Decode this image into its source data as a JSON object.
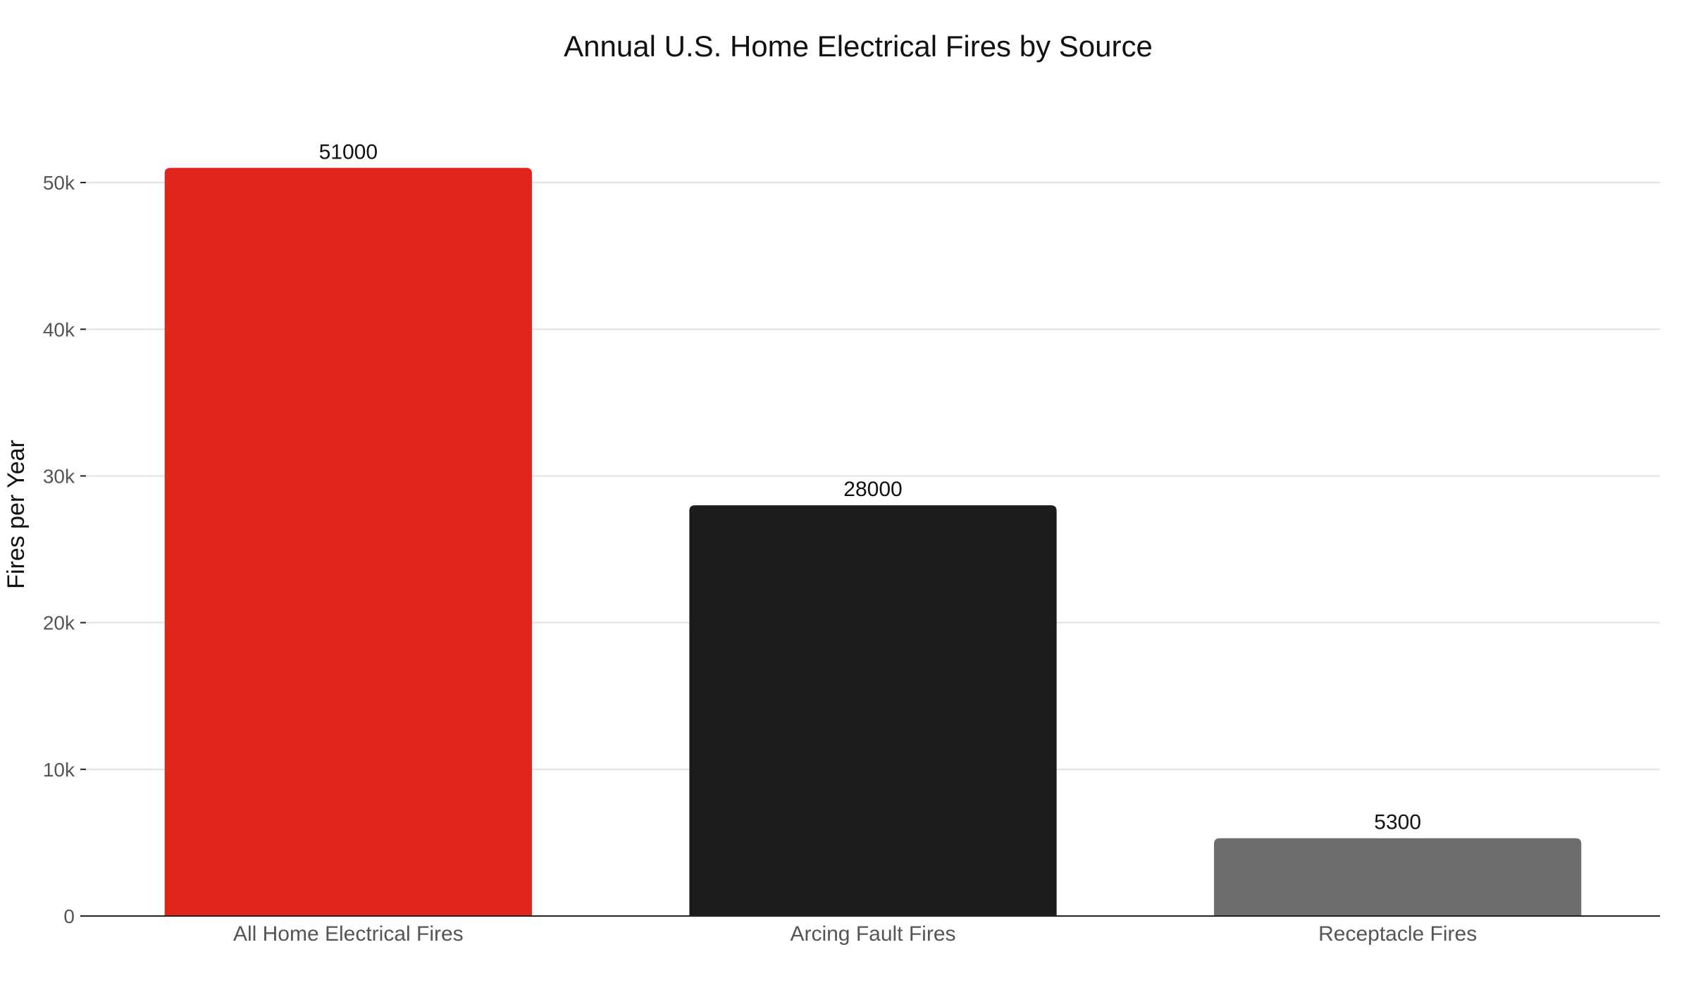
{
  "chart_data": {
    "type": "bar",
    "title": "Annual U.S. Home Electrical Fires by Source",
    "xlabel": "",
    "ylabel": "Fires per Year",
    "categories": [
      "All Home Electrical Fires",
      "Arcing Fault Fires",
      "Receptacle Fires"
    ],
    "values": [
      51000,
      28000,
      5300
    ],
    "data_labels": [
      "51000",
      "28000",
      "5300"
    ],
    "colors": [
      "#e0251b",
      "#1c1c1c",
      "#6d6d6d"
    ],
    "ylim": [
      0,
      55000
    ],
    "yticks": [
      0,
      10000,
      20000,
      30000,
      40000,
      50000
    ],
    "ytick_labels": [
      "0",
      "10k",
      "20k",
      "30k",
      "40k",
      "50k"
    ],
    "grid": true,
    "legend": "none"
  }
}
